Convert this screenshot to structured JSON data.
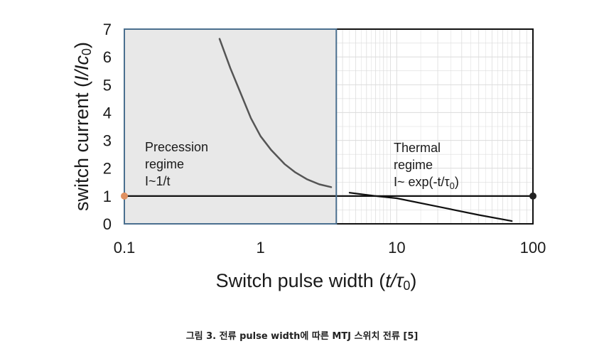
{
  "chart_data": {
    "type": "line",
    "xlabel_prefix": "Switch pulse width (",
    "xlabel_var": "t/τ",
    "xlabel_sub": "0",
    "xlabel_suffix": ")",
    "ylabel": "switch current (I/Ic0)",
    "ylabel_prefix": "switch current (",
    "ylabel_var": "I/Ic",
    "ylabel_sub": "0",
    "ylabel_suffix": ")",
    "x_scale": "log",
    "xlim": [
      0.1,
      100
    ],
    "ylim": [
      0,
      7
    ],
    "x_ticks": [
      0.1,
      1,
      10,
      100
    ],
    "x_tick_labels": [
      "0.1",
      "1",
      "10",
      "100"
    ],
    "y_ticks": [
      0,
      1,
      2,
      3,
      4,
      5,
      6,
      7
    ],
    "y_tick_labels": [
      "0",
      "1",
      "2",
      "3",
      "4",
      "5",
      "6",
      "7"
    ],
    "grid": true,
    "shaded_region": {
      "x_range": [
        0.1,
        3.6
      ],
      "label": "Precession regime"
    },
    "series": [
      {
        "name": "precession",
        "color": "#555555",
        "points": [
          [
            0.5,
            6.65
          ],
          [
            0.6,
            5.6
          ],
          [
            0.7,
            4.8
          ],
          [
            0.85,
            3.8
          ],
          [
            1.0,
            3.15
          ],
          [
            1.2,
            2.65
          ],
          [
            1.5,
            2.15
          ],
          [
            1.8,
            1.85
          ],
          [
            2.2,
            1.6
          ],
          [
            2.7,
            1.42
          ],
          [
            3.3,
            1.32
          ]
        ]
      },
      {
        "name": "thermal",
        "color": "#111111",
        "points": [
          [
            4.5,
            1.12
          ],
          [
            7.0,
            1.0
          ],
          [
            10,
            0.92
          ],
          [
            20,
            0.62
          ],
          [
            40,
            0.32
          ],
          [
            70,
            0.1
          ]
        ]
      },
      {
        "name": "I=1",
        "color": "#111111",
        "points": [
          [
            0.1,
            1.0
          ],
          [
            100,
            1.0
          ]
        ]
      }
    ],
    "markers": [
      {
        "x": 0.1,
        "y": 1.0,
        "color": "#e09060"
      },
      {
        "x": 100,
        "y": 1.0,
        "color": "#222222"
      }
    ],
    "annotations": {
      "precession": [
        "Precession",
        "regime",
        "I~1/t"
      ],
      "thermal_line1": "Thermal",
      "thermal_line2": "regime",
      "thermal_line3_prefix": "I~ exp(-t/τ",
      "thermal_line3_sub": "0",
      "thermal_line3_suffix": ")"
    },
    "colors": {
      "shade": "#e8e8e8",
      "shade_border": "#4a6f8f",
      "grid": "#dcdcdc"
    }
  },
  "caption": "그림 3. 전류 pulse width에 따른 MTJ 스위치 전류 [5]"
}
